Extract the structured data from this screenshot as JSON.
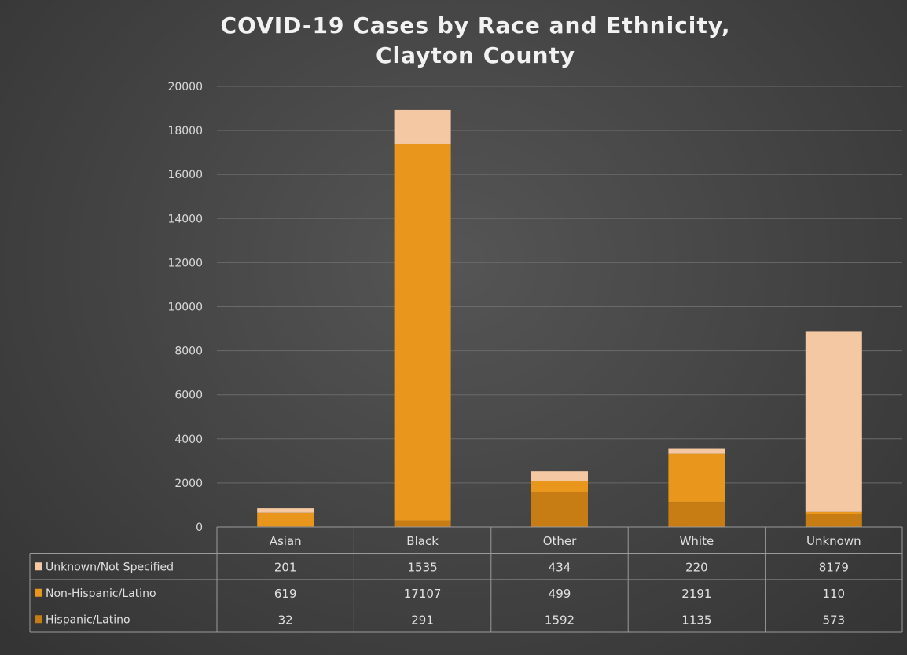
{
  "chart_data": {
    "type": "bar",
    "stacked": true,
    "title_lines": [
      "COVID-19 Cases by Race and Ethnicity,",
      "Clayton County"
    ],
    "categories": [
      "Asian",
      "Black",
      "Other",
      "White",
      "Unknown"
    ],
    "series": [
      {
        "name": "Hispanic/Latino",
        "values": [
          32,
          291,
          1592,
          1135,
          573
        ],
        "color": "#c87d14"
      },
      {
        "name": "Non-Hispanic/Latino",
        "values": [
          619,
          17107,
          499,
          2191,
          110
        ],
        "color": "#e8961c"
      },
      {
        "name": "Unknown/Not Specified",
        "values": [
          201,
          1535,
          434,
          220,
          8179
        ],
        "color": "#f3c8a2"
      }
    ],
    "ylim": [
      0,
      20000
    ],
    "yticks": [
      0,
      2000,
      4000,
      6000,
      8000,
      10000,
      12000,
      14000,
      16000,
      18000,
      20000
    ],
    "grid": true,
    "data_table": true,
    "table_row_order": [
      "Unknown/Not Specified",
      "Non-Hispanic/Latino",
      "Hispanic/Latino"
    ]
  }
}
